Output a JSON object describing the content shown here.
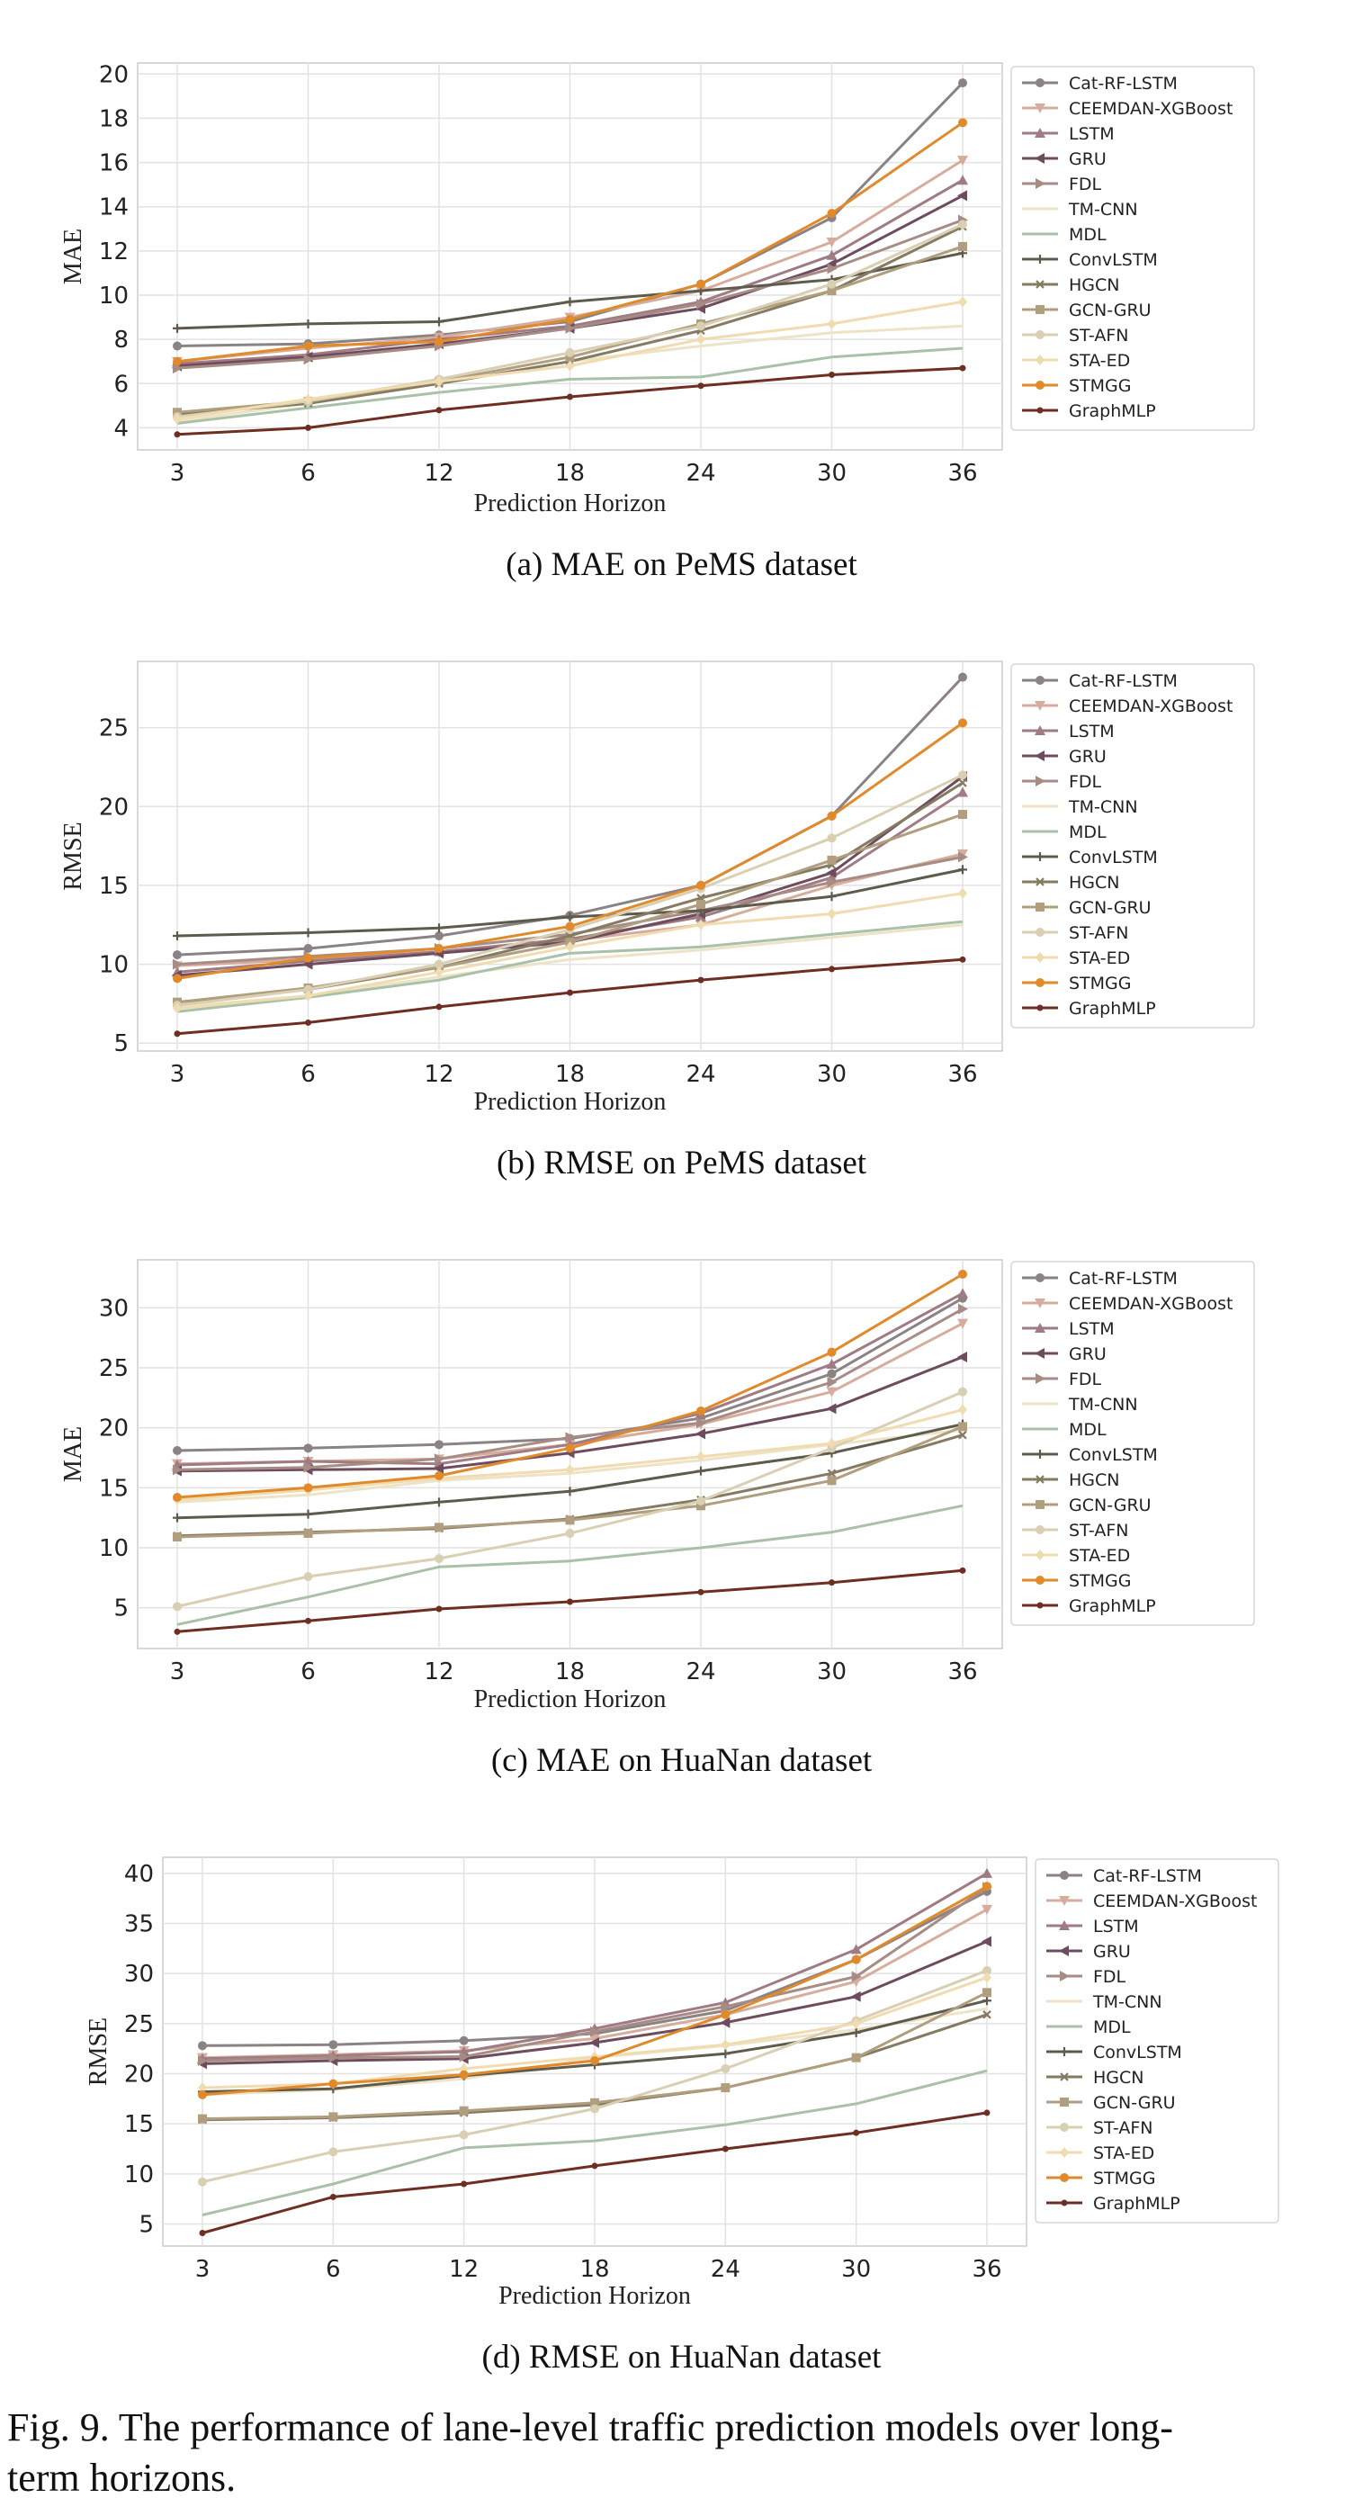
{
  "figure": {
    "caption_line1": "Fig. 9.  The performance of lane-level traffic prediction models over long-",
    "caption_line2": "term horizons."
  },
  "styles": [
    {
      "name": "Cat-RF-LSTM",
      "color": "#8a8283",
      "marker": "circle"
    },
    {
      "name": "CEEMDAN-XGBoost",
      "color": "#d6ad9c",
      "marker": "triangle-down"
    },
    {
      "name": "LSTM",
      "color": "#a07b83",
      "marker": "triangle-up"
    },
    {
      "name": "GRU",
      "color": "#6e4c5e",
      "marker": "triangle-left"
    },
    {
      "name": "FDL",
      "color": "#a68c84",
      "marker": "triangle-right"
    },
    {
      "name": "TM-CNN",
      "color": "#ede3c6",
      "marker": "line"
    },
    {
      "name": "MDL",
      "color": "#a9c2a7",
      "marker": "line"
    },
    {
      "name": "ConvLSTM",
      "color": "#5e5b4c",
      "marker": "plus"
    },
    {
      "name": "HGCN",
      "color": "#857a62",
      "marker": "x"
    },
    {
      "name": "GCN-GRU",
      "color": "#b09e7e",
      "marker": "square"
    },
    {
      "name": "ST-AFN",
      "color": "#d9cfb2",
      "marker": "circle"
    },
    {
      "name": "STA-ED",
      "color": "#f0dcb0",
      "marker": "diamond"
    },
    {
      "name": "STMGG",
      "color": "#e08a2c",
      "marker": "circle"
    },
    {
      "name": "GraphMLP",
      "color": "#6e2e22",
      "marker": "dot"
    }
  ],
  "chart_data": [
    {
      "type": "line",
      "title": "(a) MAE on PeMS dataset",
      "xlabel": "Prediction Horizon",
      "ylabel": "MAE",
      "categories": [
        "3",
        "6",
        "12",
        "18",
        "24",
        "30",
        "36"
      ],
      "ylim": [
        3,
        20.5
      ],
      "yticks": [
        4,
        6,
        8,
        10,
        12,
        14,
        16,
        18,
        20
      ],
      "series": [
        {
          "name": "Cat-RF-LSTM",
          "values": [
            7.7,
            7.8,
            8.2,
            8.8,
            10.5,
            13.5,
            19.6
          ]
        },
        {
          "name": "CEEMDAN-XGBoost",
          "values": [
            7.0,
            7.6,
            8.1,
            9.0,
            10.2,
            12.4,
            16.1
          ]
        },
        {
          "name": "LSTM",
          "values": [
            6.9,
            7.3,
            8.0,
            8.6,
            9.7,
            11.8,
            15.2
          ]
        },
        {
          "name": "GRU",
          "values": [
            6.8,
            7.2,
            7.8,
            8.5,
            9.4,
            11.4,
            14.5
          ]
        },
        {
          "name": "FDL",
          "values": [
            6.7,
            7.1,
            7.7,
            8.5,
            9.6,
            11.2,
            13.4
          ]
        },
        {
          "name": "TM-CNN",
          "values": [
            4.3,
            5.1,
            6.0,
            7.0,
            7.7,
            8.3,
            8.6
          ]
        },
        {
          "name": "MDL",
          "values": [
            4.2,
            4.9,
            5.6,
            6.2,
            6.3,
            7.2,
            7.6
          ]
        },
        {
          "name": "ConvLSTM",
          "values": [
            8.5,
            8.7,
            8.8,
            9.7,
            10.2,
            10.7,
            11.9
          ]
        },
        {
          "name": "HGCN",
          "values": [
            4.6,
            5.1,
            6.0,
            7.0,
            8.4,
            10.2,
            13.1
          ]
        },
        {
          "name": "GCN-GRU",
          "values": [
            4.7,
            5.2,
            6.1,
            7.2,
            8.7,
            10.2,
            12.2
          ]
        },
        {
          "name": "ST-AFN",
          "values": [
            4.5,
            5.2,
            6.2,
            7.4,
            8.6,
            10.5,
            13.2
          ]
        },
        {
          "name": "STA-ED",
          "values": [
            4.4,
            5.3,
            6.1,
            6.8,
            8.0,
            8.7,
            9.7
          ]
        },
        {
          "name": "STMGG",
          "values": [
            7.0,
            7.7,
            7.9,
            8.9,
            10.5,
            13.7,
            17.8
          ]
        },
        {
          "name": "GraphMLP",
          "values": [
            3.7,
            4.0,
            4.8,
            5.4,
            5.9,
            6.4,
            6.7
          ]
        }
      ]
    },
    {
      "type": "line",
      "title": "(b) RMSE on PeMS dataset",
      "xlabel": "Prediction Horizon",
      "ylabel": "RMSE",
      "categories": [
        "3",
        "6",
        "12",
        "18",
        "24",
        "30",
        "36"
      ],
      "ylim": [
        4.5,
        29.2
      ],
      "yticks": [
        5,
        10,
        15,
        20,
        25
      ],
      "series": [
        {
          "name": "Cat-RF-LSTM",
          "values": [
            10.6,
            11.0,
            11.8,
            13.1,
            15.0,
            19.4,
            28.2
          ]
        },
        {
          "name": "CEEMDAN-XGBoost",
          "values": [
            9.9,
            10.3,
            10.8,
            11.5,
            12.5,
            15.0,
            17.0
          ]
        },
        {
          "name": "LSTM",
          "values": [
            9.5,
            10.2,
            10.8,
            11.6,
            13.0,
            15.5,
            20.9
          ]
        },
        {
          "name": "GRU",
          "values": [
            9.3,
            10.0,
            10.7,
            11.4,
            13.2,
            15.8,
            21.9
          ]
        },
        {
          "name": "FDL",
          "values": [
            10.0,
            10.5,
            11.0,
            11.9,
            13.4,
            15.2,
            16.8
          ]
        },
        {
          "name": "TM-CNN",
          "values": [
            7.3,
            8.0,
            9.2,
            10.3,
            10.9,
            11.7,
            12.5
          ]
        },
        {
          "name": "MDL",
          "values": [
            7.0,
            7.9,
            9.0,
            10.7,
            11.1,
            11.9,
            12.7
          ]
        },
        {
          "name": "ConvLSTM",
          "values": [
            11.8,
            12.0,
            12.3,
            13.0,
            13.4,
            14.3,
            16.0
          ]
        },
        {
          "name": "HGCN",
          "values": [
            7.6,
            8.4,
            9.8,
            11.8,
            14.2,
            16.3,
            21.5
          ]
        },
        {
          "name": "GCN-GRU",
          "values": [
            7.6,
            8.5,
            9.8,
            11.4,
            13.8,
            16.6,
            19.5
          ]
        },
        {
          "name": "ST-AFN",
          "values": [
            7.4,
            8.4,
            10.0,
            12.2,
            14.8,
            18.0,
            22.0
          ]
        },
        {
          "name": "STA-ED",
          "values": [
            7.2,
            8.0,
            9.5,
            11.1,
            12.5,
            13.2,
            14.5
          ]
        },
        {
          "name": "STMGG",
          "values": [
            9.1,
            10.4,
            11.0,
            12.4,
            15.0,
            19.4,
            25.3
          ]
        },
        {
          "name": "GraphMLP",
          "values": [
            5.6,
            6.3,
            7.3,
            8.2,
            9.0,
            9.7,
            10.3
          ]
        }
      ]
    },
    {
      "type": "line",
      "title": "(c) MAE on HuaNan dataset",
      "xlabel": "Prediction Horizon",
      "ylabel": "MAE",
      "categories": [
        "3",
        "6",
        "12",
        "18",
        "24",
        "30",
        "36"
      ],
      "ylim": [
        1.6,
        34.0
      ],
      "yticks": [
        5,
        10,
        15,
        20,
        25,
        30
      ],
      "series": [
        {
          "name": "Cat-RF-LSTM",
          "values": [
            18.1,
            18.3,
            18.6,
            19.1,
            20.8,
            24.5,
            30.8
          ]
        },
        {
          "name": "CEEMDAN-XGBoost",
          "values": [
            17.0,
            17.2,
            17.4,
            18.6,
            20.3,
            23.0,
            28.7
          ]
        },
        {
          "name": "LSTM",
          "values": [
            16.9,
            17.2,
            17.0,
            18.6,
            21.2,
            25.3,
            31.2
          ]
        },
        {
          "name": "GRU",
          "values": [
            16.4,
            16.5,
            16.6,
            17.9,
            19.5,
            21.6,
            25.9
          ]
        },
        {
          "name": "FDL",
          "values": [
            16.5,
            16.7,
            17.4,
            19.2,
            20.4,
            23.8,
            29.9
          ]
        },
        {
          "name": "TM-CNN",
          "values": [
            13.8,
            14.4,
            15.6,
            16.2,
            17.3,
            18.6,
            19.8
          ]
        },
        {
          "name": "MDL",
          "values": [
            3.6,
            5.9,
            8.4,
            8.9,
            10.0,
            11.3,
            13.5
          ]
        },
        {
          "name": "ConvLSTM",
          "values": [
            12.5,
            12.8,
            13.8,
            14.7,
            16.4,
            17.9,
            20.3
          ]
        },
        {
          "name": "HGCN",
          "values": [
            11.0,
            11.3,
            11.6,
            12.4,
            14.0,
            16.2,
            19.4
          ]
        },
        {
          "name": "GCN-GRU",
          "values": [
            10.9,
            11.2,
            11.7,
            12.3,
            13.5,
            15.6,
            20.1
          ]
        },
        {
          "name": "ST-AFN",
          "values": [
            5.1,
            7.6,
            9.1,
            11.2,
            13.9,
            18.3,
            23.0
          ]
        },
        {
          "name": "STA-ED",
          "values": [
            14.0,
            14.8,
            15.8,
            16.5,
            17.6,
            18.7,
            21.5
          ]
        },
        {
          "name": "STMGG",
          "values": [
            14.2,
            15.0,
            16.0,
            18.3,
            21.4,
            26.3,
            32.8
          ]
        },
        {
          "name": "GraphMLP",
          "values": [
            3.0,
            3.9,
            4.9,
            5.5,
            6.3,
            7.1,
            8.1
          ]
        }
      ]
    },
    {
      "type": "line",
      "title": "(d) RMSE on HuaNan dataset",
      "xlabel": "Prediction Horizon",
      "ylabel": "RMSE",
      "categories": [
        "3",
        "6",
        "12",
        "18",
        "24",
        "30",
        "36"
      ],
      "ylim": [
        2.8,
        41.6
      ],
      "yticks": [
        5,
        10,
        15,
        20,
        25,
        30,
        35,
        40
      ],
      "series": [
        {
          "name": "Cat-RF-LSTM",
          "values": [
            22.8,
            22.9,
            23.3,
            24.0,
            26.3,
            31.4,
            38.2
          ]
        },
        {
          "name": "CEEMDAN-XGBoost",
          "values": [
            21.6,
            21.9,
            22.3,
            23.5,
            25.9,
            29.2,
            36.4
          ]
        },
        {
          "name": "LSTM",
          "values": [
            21.5,
            21.8,
            22.2,
            24.5,
            27.1,
            32.4,
            40.0
          ]
        },
        {
          "name": "GRU",
          "values": [
            21.0,
            21.3,
            21.5,
            23.1,
            25.1,
            27.7,
            33.2
          ]
        },
        {
          "name": "FDL",
          "values": [
            21.3,
            21.6,
            21.7,
            24.2,
            26.7,
            29.7,
            38.6
          ]
        },
        {
          "name": "TM-CNN",
          "values": [
            17.9,
            18.4,
            19.5,
            21.6,
            22.8,
            24.4,
            26.5
          ]
        },
        {
          "name": "MDL",
          "values": [
            5.9,
            9.0,
            12.6,
            13.3,
            14.9,
            17.0,
            20.3
          ]
        },
        {
          "name": "ConvLSTM",
          "values": [
            18.2,
            18.5,
            19.8,
            20.9,
            22.0,
            24.1,
            27.3
          ]
        },
        {
          "name": "HGCN",
          "values": [
            15.4,
            15.6,
            16.1,
            16.9,
            18.6,
            21.6,
            25.9
          ]
        },
        {
          "name": "GCN-GRU",
          "values": [
            15.5,
            15.7,
            16.3,
            17.1,
            18.6,
            21.6,
            28.1
          ]
        },
        {
          "name": "ST-AFN",
          "values": [
            9.2,
            12.2,
            13.9,
            16.5,
            20.5,
            25.3,
            30.3
          ]
        },
        {
          "name": "STA-ED",
          "values": [
            18.6,
            19.0,
            20.5,
            21.7,
            22.9,
            25.0,
            29.6
          ]
        },
        {
          "name": "STMGG",
          "values": [
            17.9,
            19.0,
            19.9,
            21.3,
            25.9,
            31.4,
            38.7
          ]
        },
        {
          "name": "GraphMLP",
          "values": [
            4.1,
            7.7,
            9.0,
            10.8,
            12.5,
            14.1,
            16.1
          ]
        }
      ]
    }
  ]
}
